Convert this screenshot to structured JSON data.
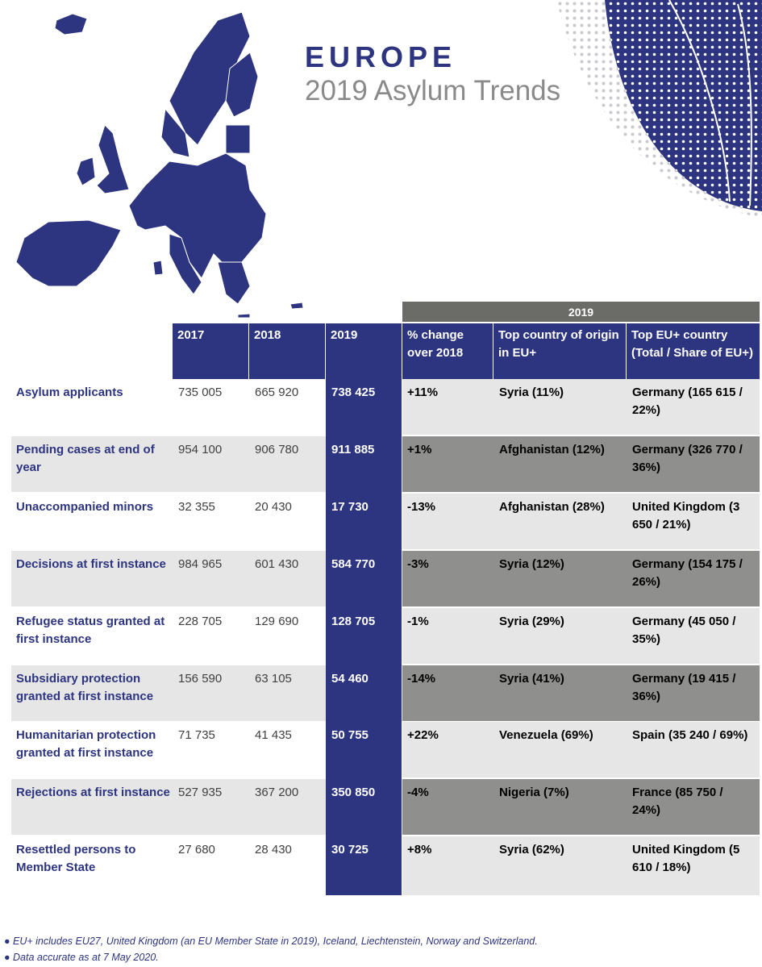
{
  "header": {
    "title": "EUROPE",
    "subtitle": "2019 Asylum Trends"
  },
  "colors": {
    "navy": "#2d3480",
    "dark_gray": "#6b6b68",
    "mid_gray": "#8f8f8d",
    "light_gray": "#e6e6e6",
    "subtitle_gray": "#8a8a8a"
  },
  "icons": [
    "europe-map-icon",
    "dotted-circle-decoration"
  ],
  "table": {
    "group_header": "2019",
    "columns": [
      "2017",
      "2018",
      "2019",
      "% change over 2018",
      "Top country of origin in EU+",
      "Top EU+ country (Total / Share of EU+)"
    ],
    "rows": [
      {
        "label": "Asylum applicants",
        "y2017": "735 005",
        "y2018": "665 920",
        "y2019": "738 425",
        "change": "+11%",
        "origin": "Syria (11%)",
        "top": "Germany (165 615 / 22%)"
      },
      {
        "label": "Pending cases at end of year",
        "y2017": "954 100",
        "y2018": "906 780",
        "y2019": "911 885",
        "change": "+1%",
        "origin": "Afghanistan (12%)",
        "top": "Germany (326 770 / 36%)"
      },
      {
        "label": "Unaccompanied minors",
        "y2017": "32 355",
        "y2018": "20 430",
        "y2019": "17 730",
        "change": "-13%",
        "origin": "Afghanistan (28%)",
        "top": "United Kingdom (3 650 / 21%)"
      },
      {
        "label": "Decisions at first instance",
        "y2017": "984 965",
        "y2018": "601 430",
        "y2019": "584 770",
        "change": "-3%",
        "origin": "Syria (12%)",
        "top": "Germany (154 175 / 26%)"
      },
      {
        "label": "Refugee status granted at first instance",
        "y2017": "228 705",
        "y2018": "129 690",
        "y2019": "128 705",
        "change": "-1%",
        "origin": "Syria (29%)",
        "top": "Germany (45 050 / 35%)"
      },
      {
        "label": "Subsidiary protection granted at first instance",
        "y2017": "156 590",
        "y2018": "63 105",
        "y2019": "54 460",
        "change": "-14%",
        "origin": "Syria (41%)",
        "top": "Germany (19 415 / 36%)"
      },
      {
        "label": "Humanitarian protection granted at first instance",
        "y2017": "71 735",
        "y2018": "41 435",
        "y2019": "50 755",
        "change": "+22%",
        "origin": "Venezuela (69%)",
        "top": "Spain (35 240 / 69%)"
      },
      {
        "label": "Rejections at first instance",
        "y2017": "527 935",
        "y2018": "367 200",
        "y2019": "350 850",
        "change": "-4%",
        "origin": "Nigeria (7%)",
        "top": "France (85 750 / 24%)"
      },
      {
        "label": "Resettled persons to Member State",
        "y2017": "27 680",
        "y2018": "28 430",
        "y2019": "30 725",
        "change": "+8%",
        "origin": "Syria (62%)",
        "top": "United Kingdom (5 610 / 18%)"
      }
    ]
  },
  "footnotes": [
    "● EU+ includes EU27, United Kingdom (an EU Member State in 2019), Iceland, Liechtenstein, Norway and Switzerland.",
    "● Data accurate as at 7 May 2020."
  ]
}
